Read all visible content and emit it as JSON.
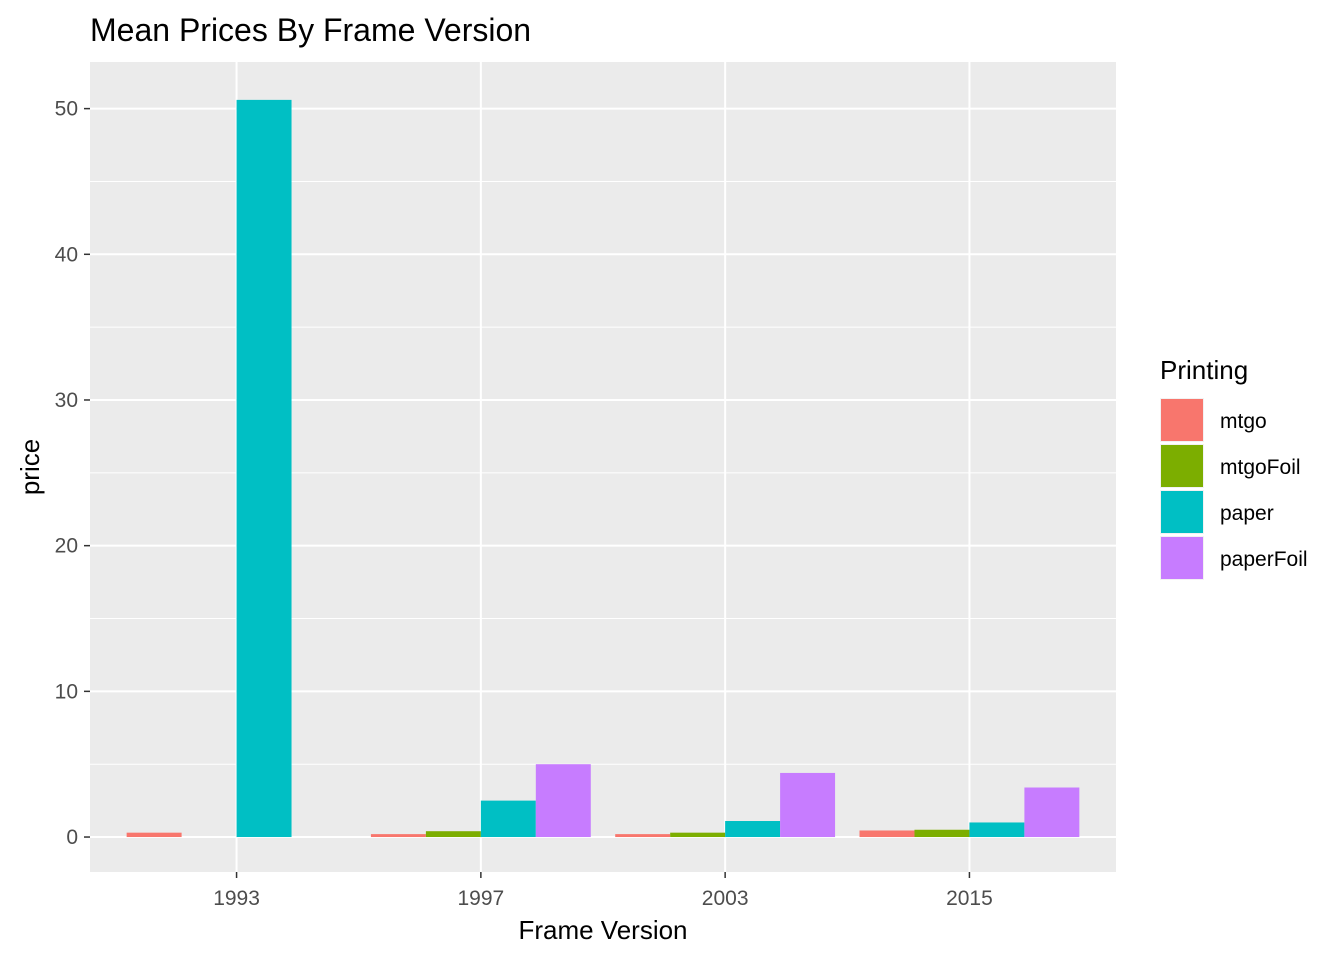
{
  "chart_data": {
    "type": "bar",
    "title": "Mean Prices By Frame Version",
    "xlabel": "Frame Version",
    "ylabel": "price",
    "categories": [
      "1993",
      "1997",
      "2003",
      "2015"
    ],
    "ylim": [
      -2.4,
      53.2
    ],
    "yticks": [
      0,
      10,
      20,
      30,
      40,
      50
    ],
    "grid": true,
    "legend_position": "right",
    "legend_title": "Printing",
    "background_color": "#EBEBEB",
    "grid_color": "#FFFFFF",
    "series": [
      {
        "name": "mtgo",
        "color": "#F8766D",
        "values": [
          0.3,
          0.2,
          0.2,
          0.45
        ]
      },
      {
        "name": "mtgoFoil",
        "color": "#7CAE00",
        "values": [
          null,
          0.4,
          0.3,
          0.5
        ]
      },
      {
        "name": "paper",
        "color": "#00BFC4",
        "values": [
          50.6,
          2.5,
          1.1,
          1.0
        ]
      },
      {
        "name": "paperFoil",
        "color": "#C77CFF",
        "values": [
          null,
          5.0,
          4.4,
          3.4
        ]
      }
    ]
  }
}
